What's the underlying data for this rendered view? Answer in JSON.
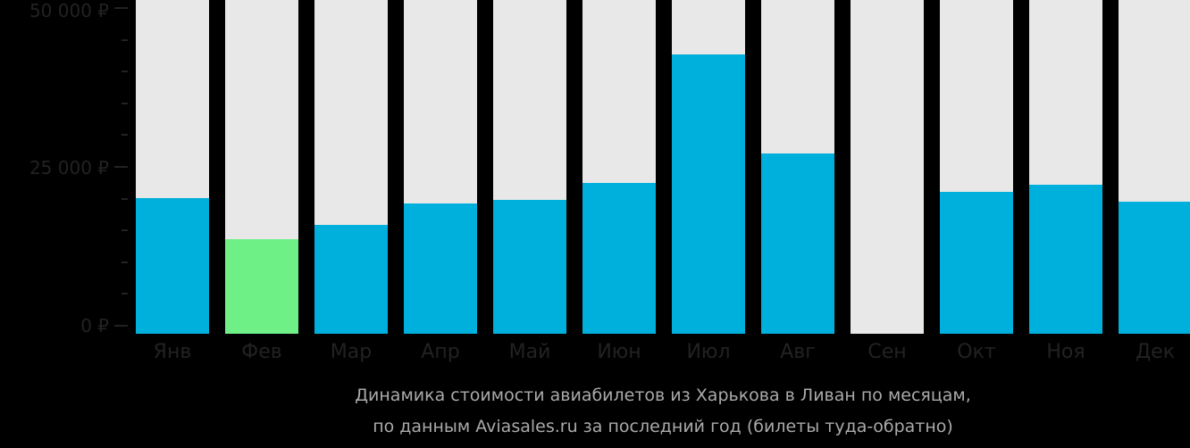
{
  "chart_data": {
    "type": "bar",
    "title": "Динамика стоимости авиабилетов из Харькова в Ливан по месяцам,",
    "subtitle": "по данным Aviasales.ru за последний год (билеты туда-обратно)",
    "xlabel": "",
    "ylabel": "",
    "ylim": [
      0,
      50000
    ],
    "yticks": [
      "0 ₽",
      "25 000 ₽",
      "50 000 ₽"
    ],
    "grid": false,
    "categories": [
      "Янв",
      "Фев",
      "Мар",
      "Апр",
      "Май",
      "Июн",
      "Июл",
      "Авг",
      "Сен",
      "Окт",
      "Ноя",
      "Дек"
    ],
    "values": [
      20050,
      13560,
      15820,
      19210,
      19770,
      22460,
      42650,
      27120,
      0,
      21050,
      22180,
      19490
    ],
    "highlight_index": 1,
    "colors": {
      "bar": "#00b0dc",
      "highlight": "#6ef087",
      "background_bar": "#e8e8e8",
      "page_bg": "#000000"
    }
  },
  "axis": {
    "y_labels": {
      "top": "50 000 ₽",
      "mid": "25 000 ₽",
      "zero": "0 ₽"
    }
  },
  "caption": {
    "line1": "Динамика стоимости авиабилетов из Харькова в Ливан по месяцам,",
    "line2": "по данным Aviasales.ru за последний год (билеты туда-обратно)"
  }
}
